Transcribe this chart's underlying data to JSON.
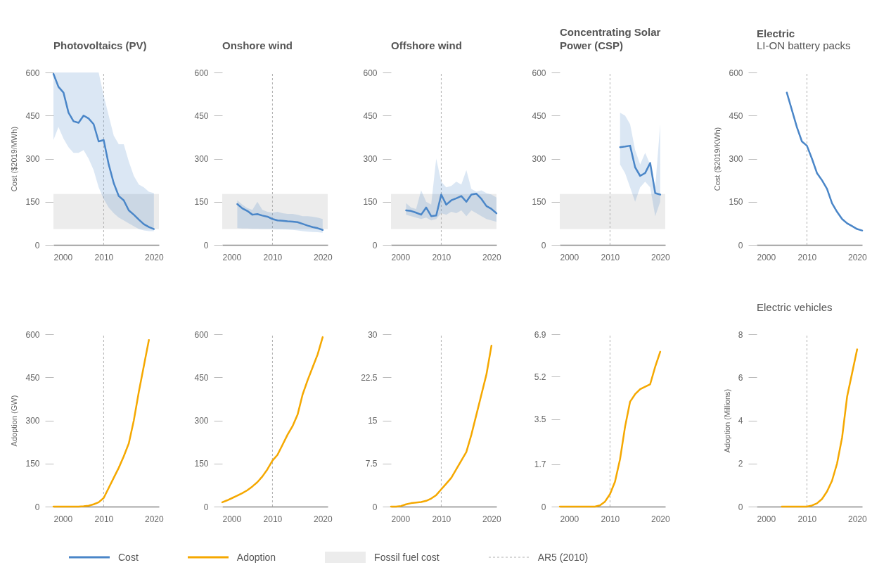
{
  "chart_data": [
    {
      "type": "line",
      "title": "Photovoltaics (PV)",
      "ylabel": "Cost ($2019/MWh)",
      "xlim": [
        2000,
        2021
      ],
      "xticks": [
        2000,
        2010,
        2020
      ],
      "ylim": [
        0,
        600
      ],
      "yticks": [
        0,
        150,
        300,
        450,
        600
      ],
      "legend": "bottom",
      "bands": [
        {
          "axis": "y",
          "from": 55,
          "to": 177,
          "label": "Fossil fuel cost",
          "color": "#ececec"
        }
      ],
      "ref_lines": [
        {
          "axis": "x",
          "value": 2010,
          "label": "AR5 (2010)",
          "color": "#b0b0b0",
          "line_style": "dashed"
        }
      ],
      "series": [
        {
          "name": "Cost",
          "color": "#4a86c8",
          "x": [
            2000,
            2001,
            2002,
            2003,
            2004,
            2005,
            2006,
            2007,
            2008,
            2009,
            2010,
            2011,
            2012,
            2013,
            2014,
            2015,
            2016,
            2017,
            2018,
            2019,
            2020
          ],
          "values": [
            595,
            550,
            530,
            460,
            430,
            425,
            450,
            440,
            420,
            360,
            365,
            280,
            215,
            170,
            155,
            120,
            105,
            88,
            72,
            62,
            55
          ],
          "upper": [
            600,
            600,
            600,
            600,
            600,
            600,
            600,
            600,
            600,
            600,
            520,
            450,
            380,
            350,
            350,
            290,
            240,
            210,
            200,
            185,
            180
          ],
          "lower": [
            365,
            410,
            370,
            340,
            320,
            320,
            330,
            300,
            260,
            200,
            160,
            130,
            110,
            95,
            85,
            75,
            65,
            55,
            50,
            48,
            48
          ]
        }
      ]
    },
    {
      "type": "line",
      "title": "Onshore wind",
      "xlim": [
        2000,
        2021
      ],
      "xticks": [
        2000,
        2010,
        2020
      ],
      "ylim": [
        0,
        600
      ],
      "yticks": [
        0,
        150,
        300,
        450,
        600
      ],
      "bands": [
        {
          "axis": "y",
          "from": 55,
          "to": 177,
          "color": "#ececec"
        }
      ],
      "ref_lines": [
        {
          "axis": "x",
          "value": 2010,
          "color": "#b0b0b0",
          "line_style": "dashed"
        }
      ],
      "series": [
        {
          "color": "#4a86c8",
          "x": [
            2003,
            2004,
            2005,
            2006,
            2007,
            2008,
            2009,
            2010,
            2011,
            2012,
            2013,
            2014,
            2015,
            2016,
            2017,
            2018,
            2019,
            2020
          ],
          "values": [
            142,
            127,
            118,
            105,
            107,
            102,
            98,
            90,
            85,
            84,
            82,
            81,
            79,
            73,
            67,
            62,
            58,
            52
          ],
          "upper": [
            155,
            140,
            128,
            122,
            150,
            122,
            115,
            112,
            115,
            110,
            108,
            108,
            105,
            100,
            100,
            98,
            95,
            90
          ],
          "lower": [
            58,
            57,
            57,
            56,
            56,
            55,
            55,
            55,
            54,
            54,
            53,
            52,
            50,
            48,
            46,
            45,
            44,
            42
          ]
        }
      ]
    },
    {
      "type": "line",
      "title": "Offshore wind",
      "xlim": [
        2000,
        2021
      ],
      "xticks": [
        2000,
        2010,
        2020
      ],
      "ylim": [
        0,
        600
      ],
      "yticks": [
        0,
        150,
        300,
        450,
        600
      ],
      "bands": [
        {
          "axis": "y",
          "from": 55,
          "to": 177,
          "color": "#ececec"
        }
      ],
      "ref_lines": [
        {
          "axis": "x",
          "value": 2010,
          "color": "#b0b0b0",
          "line_style": "dashed"
        }
      ],
      "series": [
        {
          "color": "#4a86c8",
          "x": [
            2003,
            2004,
            2005,
            2006,
            2007,
            2008,
            2009,
            2010,
            2011,
            2012,
            2013,
            2014,
            2015,
            2016,
            2017,
            2018,
            2019,
            2020,
            2021
          ],
          "values": [
            120,
            118,
            112,
            105,
            130,
            100,
            102,
            175,
            140,
            155,
            162,
            170,
            150,
            175,
            178,
            160,
            135,
            125,
            110
          ],
          "upper": [
            145,
            130,
            125,
            190,
            150,
            140,
            300,
            220,
            200,
            205,
            220,
            210,
            260,
            195,
            185,
            190,
            180,
            175,
            165
          ],
          "lower": [
            105,
            100,
            95,
            90,
            95,
            85,
            90,
            110,
            105,
            115,
            110,
            120,
            100,
            120,
            110,
            100,
            90,
            85,
            80
          ]
        }
      ]
    },
    {
      "type": "line",
      "title": "Concentrating Solar Power (CSP)",
      "xlim": [
        2000,
        2021
      ],
      "xticks": [
        2000,
        2010,
        2020
      ],
      "ylim": [
        0,
        600
      ],
      "yticks": [
        0,
        150,
        300,
        450,
        600
      ],
      "bands": [
        {
          "axis": "y",
          "from": 55,
          "to": 177,
          "color": "#ececec"
        }
      ],
      "ref_lines": [
        {
          "axis": "x",
          "value": 2010,
          "color": "#b0b0b0",
          "line_style": "dashed"
        }
      ],
      "series": [
        {
          "color": "#4a86c8",
          "x": [
            2012,
            2013,
            2014,
            2015,
            2016,
            2017,
            2018,
            2019,
            2020
          ],
          "values": [
            340,
            342,
            345,
            270,
            240,
            250,
            285,
            180,
            175
          ],
          "upper": [
            460,
            450,
            420,
            330,
            280,
            320,
            280,
            200,
            420
          ],
          "lower": [
            280,
            250,
            200,
            150,
            200,
            220,
            200,
            100,
            150
          ]
        }
      ]
    },
    {
      "type": "line",
      "title": "Electric",
      "subtitle": "LI-ON battery packs",
      "ylabel": "Cost ($2019/KWh)",
      "xlim": [
        2000,
        2021
      ],
      "xticks": [
        2000,
        2010,
        2020
      ],
      "ylim": [
        0,
        600
      ],
      "yticks": [
        0,
        150,
        300,
        450,
        600
      ],
      "ref_lines": [
        {
          "axis": "x",
          "value": 2010,
          "color": "#b0b0b0",
          "line_style": "dashed"
        }
      ],
      "series": [
        {
          "color": "#4a86c8",
          "x": [
            2006,
            2007,
            2008,
            2009,
            2010,
            2011,
            2012,
            2013,
            2014,
            2015,
            2016,
            2017,
            2018,
            2019,
            2020,
            2021
          ],
          "values": [
            530,
            470,
            410,
            360,
            345,
            300,
            250,
            225,
            195,
            145,
            115,
            90,
            75,
            65,
            55,
            50
          ]
        }
      ]
    },
    {
      "type": "line",
      "ylabel": "Adoption (GW)",
      "xlim": [
        2000,
        2021
      ],
      "xticks": [
        2000,
        2010,
        2020
      ],
      "ylim": [
        0,
        600
      ],
      "yticks": [
        0,
        150,
        300,
        450,
        600
      ],
      "legend": "bottom",
      "ref_lines": [
        {
          "axis": "x",
          "value": 2010,
          "color": "#b0b0b0",
          "line_style": "dashed"
        }
      ],
      "series": [
        {
          "name": "Adoption",
          "color": "#f5a800",
          "x": [
            2000,
            2001,
            2002,
            2003,
            2004,
            2005,
            2006,
            2007,
            2008,
            2009,
            2010,
            2011,
            2012,
            2013,
            2014,
            2015,
            2016,
            2017,
            2018,
            2019
          ],
          "values": [
            0,
            0,
            0,
            0,
            0,
            0,
            1,
            3,
            8,
            15,
            30,
            65,
            100,
            135,
            175,
            220,
            300,
            400,
            490,
            580
          ]
        }
      ]
    },
    {
      "type": "line",
      "xlim": [
        2000,
        2021
      ],
      "xticks": [
        2000,
        2010,
        2020
      ],
      "ylim": [
        0,
        600
      ],
      "yticks": [
        0,
        150,
        300,
        450,
        600
      ],
      "ref_lines": [
        {
          "axis": "x",
          "value": 2010,
          "color": "#b0b0b0",
          "line_style": "dashed"
        }
      ],
      "series": [
        {
          "color": "#f5a800",
          "x": [
            2000,
            2001,
            2002,
            2003,
            2004,
            2005,
            2006,
            2007,
            2008,
            2009,
            2010,
            2011,
            2012,
            2013,
            2014,
            2015,
            2016,
            2017,
            2018,
            2019,
            2020
          ],
          "values": [
            15,
            22,
            30,
            38,
            47,
            57,
            70,
            85,
            105,
            130,
            160,
            180,
            215,
            250,
            280,
            320,
            390,
            440,
            485,
            530,
            590
          ]
        }
      ]
    },
    {
      "type": "line",
      "xlim": [
        2000,
        2021
      ],
      "xticks": [
        2000,
        2010,
        2020
      ],
      "ylim": [
        0,
        30
      ],
      "yticks": [
        0,
        7.5,
        15,
        22.5,
        30
      ],
      "ref_lines": [
        {
          "axis": "x",
          "value": 2010,
          "color": "#b0b0b0",
          "line_style": "dashed"
        }
      ],
      "series": [
        {
          "color": "#f5a800",
          "x": [
            2000,
            2001,
            2002,
            2003,
            2004,
            2005,
            2006,
            2007,
            2008,
            2009,
            2010,
            2011,
            2012,
            2013,
            2014,
            2015,
            2016,
            2017,
            2018,
            2019,
            2020
          ],
          "values": [
            0,
            0,
            0.1,
            0.4,
            0.6,
            0.7,
            0.8,
            1,
            1.4,
            2,
            3,
            4,
            5,
            6.5,
            8,
            9.5,
            12.5,
            16,
            19.5,
            23,
            28
          ]
        }
      ]
    },
    {
      "type": "line",
      "xlim": [
        2000,
        2021
      ],
      "xticks": [
        2000,
        2010,
        2020
      ],
      "ylim": [
        0,
        6.9
      ],
      "yticks": [
        0,
        1.7,
        3.5,
        5.2,
        6.9
      ],
      "ref_lines": [
        {
          "axis": "x",
          "value": 2010,
          "color": "#b0b0b0",
          "line_style": "dashed"
        }
      ],
      "series": [
        {
          "color": "#f5a800",
          "x": [
            2000,
            2001,
            2002,
            2003,
            2004,
            2005,
            2006,
            2007,
            2008,
            2009,
            2010,
            2011,
            2012,
            2013,
            2014,
            2015,
            2016,
            2017,
            2018,
            2019,
            2020
          ],
          "values": [
            0,
            0,
            0,
            0,
            0,
            0,
            0,
            0,
            0.05,
            0.2,
            0.5,
            1,
            1.9,
            3.2,
            4.2,
            4.5,
            4.7,
            4.8,
            4.9,
            5.6,
            6.2
          ]
        }
      ]
    },
    {
      "type": "line",
      "subtitle": "Electric vehicles",
      "ylabel": "Adoption (Millions)",
      "xlim": [
        2000,
        2021
      ],
      "xticks": [
        2000,
        2010,
        2020
      ],
      "ylim": [
        0,
        8
      ],
      "yticks": [
        0,
        2,
        4,
        6,
        8
      ],
      "ref_lines": [
        {
          "axis": "x",
          "value": 2010,
          "color": "#b0b0b0",
          "line_style": "dashed"
        }
      ],
      "series": [
        {
          "color": "#f5a800",
          "x": [
            2005,
            2006,
            2007,
            2008,
            2009,
            2010,
            2011,
            2012,
            2013,
            2014,
            2015,
            2016,
            2017,
            2018,
            2019,
            2020
          ],
          "values": [
            0,
            0,
            0,
            0,
            0,
            0,
            0.05,
            0.15,
            0.35,
            0.7,
            1.2,
            2,
            3.2,
            5.1,
            6.2,
            7.3
          ]
        }
      ]
    }
  ]
}
